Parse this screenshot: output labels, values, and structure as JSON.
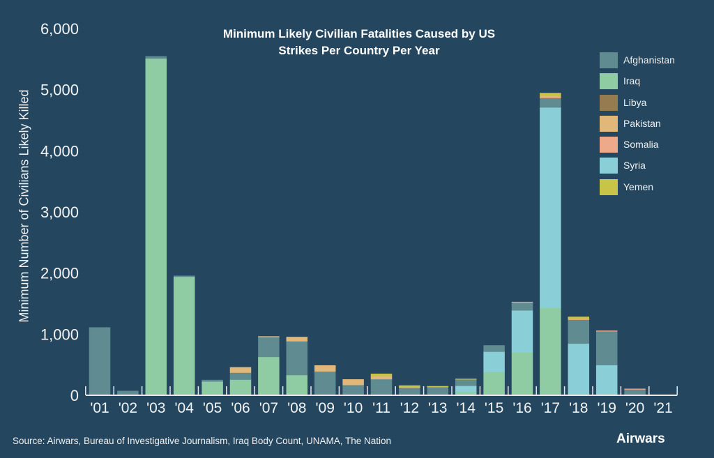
{
  "chart_data": {
    "type": "bar",
    "stacked": true,
    "title": "Minimum Likely Civilian Fatalities Caused by US Strikes Per Country Per Year",
    "title_lines": [
      "Minimum Likely Civilian Fatalities Caused by US",
      "Strikes Per Country Per Year"
    ],
    "xlabel": "",
    "ylabel": "Minimum Number of Civilians Likely Killed",
    "ylim": [
      0,
      6000
    ],
    "yticks": [
      0,
      1000,
      2000,
      3000,
      4000,
      5000,
      6000
    ],
    "ytick_labels": [
      "0",
      "1,000",
      "2,000",
      "3,000",
      "4,000",
      "5,000",
      "6,000"
    ],
    "legend_position": "top-right",
    "categories": [
      "'01",
      "'02",
      "'03",
      "'04",
      "'05",
      "'06",
      "'07",
      "'08",
      "'09",
      "'10",
      "'11",
      "'12",
      "'13",
      "'14",
      "'15",
      "'16",
      "'17",
      "'18",
      "'19",
      "'20",
      "'21"
    ],
    "series": [
      {
        "name": "Iraq",
        "color": "#8fcca4",
        "values": [
          0,
          0,
          5510,
          1940,
          225,
          256,
          628,
          331,
          0,
          0,
          0,
          0,
          0,
          55,
          382,
          700,
          1430,
          20,
          0,
          0,
          0
        ]
      },
      {
        "name": "Syria",
        "color": "#8acfd7",
        "values": [
          0,
          0,
          0,
          0,
          0,
          0,
          0,
          0,
          0,
          0,
          0,
          0,
          0,
          100,
          331,
          689,
          3280,
          825,
          494,
          0,
          0
        ]
      },
      {
        "name": "Afghanistan",
        "color": "#5f8b91",
        "values": [
          1110,
          70,
          35,
          15,
          25,
          114,
          324,
          553,
          389,
          168,
          263,
          122,
          135,
          110,
          103,
          133,
          150,
          395,
          552,
          100,
          0
        ]
      },
      {
        "name": "Libya",
        "color": "#947b50",
        "values": [
          0,
          0,
          0,
          0,
          0,
          0,
          0,
          0,
          0,
          0,
          0,
          0,
          0,
          0,
          0,
          0,
          5,
          0,
          0,
          0,
          0
        ]
      },
      {
        "name": "Somalia",
        "color": "#eea98a",
        "values": [
          0,
          0,
          0,
          0,
          0,
          0,
          0,
          0,
          0,
          0,
          0,
          0,
          0,
          0,
          0,
          5,
          10,
          5,
          10,
          5,
          0
        ]
      },
      {
        "name": "Pakistan",
        "color": "#e2b77a",
        "values": [
          0,
          0,
          0,
          0,
          0,
          87,
          11,
          69,
          99,
          91,
          50,
          11,
          8,
          0,
          0,
          0,
          20,
          0,
          0,
          0,
          0
        ]
      },
      {
        "name": "Yemen",
        "color": "#c8c447",
        "values": [
          0,
          0,
          0,
          0,
          0,
          0,
          0,
          0,
          0,
          0,
          38,
          26,
          5,
          3,
          0,
          0,
          50,
          38,
          0,
          0,
          0
        ]
      }
    ],
    "legend_order": [
      "Afghanistan",
      "Iraq",
      "Libya",
      "Pakistan",
      "Somalia",
      "Syria",
      "Yemen"
    ]
  },
  "source": "Source: Airwars, Bureau of Investigative Journalism, Iraq Body Count, UNAMA, The Nation",
  "brand": "Airwars",
  "colors": {
    "background": "#24475f",
    "axis": "#e8e8e8"
  }
}
